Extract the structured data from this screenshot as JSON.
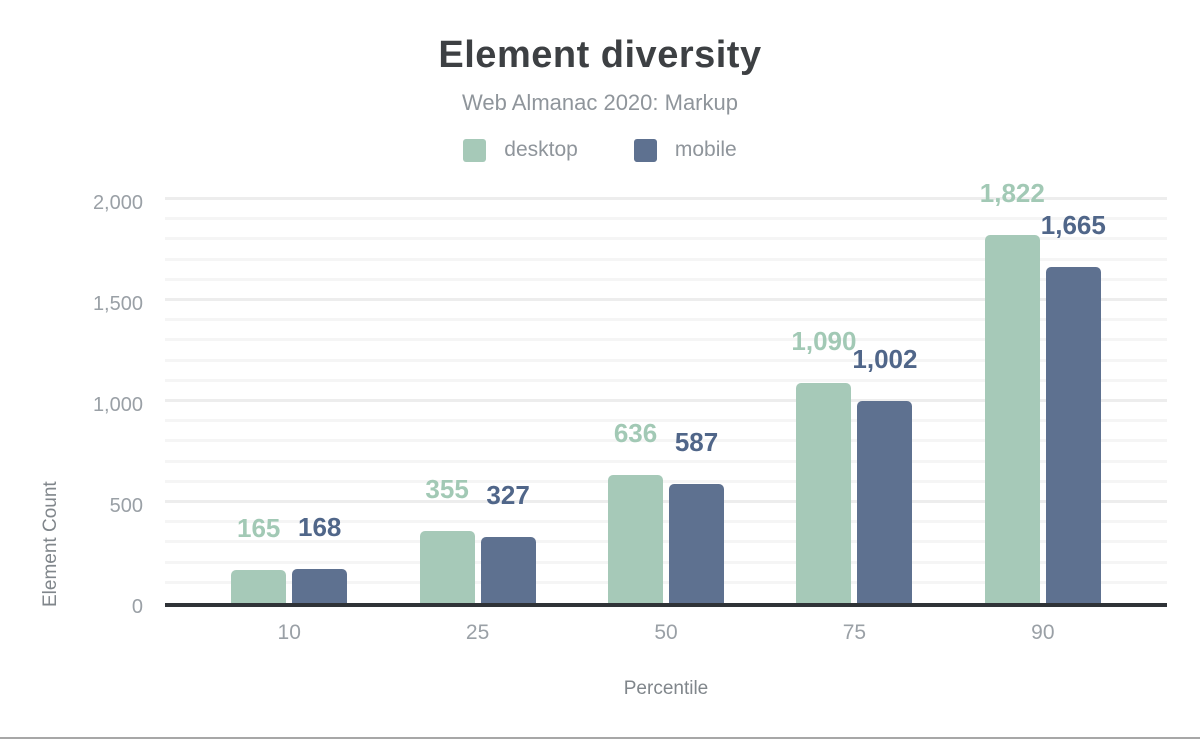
{
  "chart_data": {
    "type": "bar",
    "title": "Element diversity",
    "subtitle": "Web Almanac 2020: Markup",
    "xlabel": "Percentile",
    "ylabel": "Element Count",
    "categories": [
      "10",
      "25",
      "50",
      "75",
      "90"
    ],
    "series": [
      {
        "name": "desktop",
        "color": "#a6c9b8",
        "label_color": "#a2c9b5",
        "values": [
          165,
          355,
          636,
          1090,
          1822
        ]
      },
      {
        "name": "mobile",
        "color": "#5e7190",
        "label_color": "#506689",
        "values": [
          168,
          327,
          587,
          1002,
          1665
        ]
      }
    ],
    "y_ticks": [
      0,
      500,
      1000,
      1500,
      2000
    ],
    "ylim": [
      0,
      2090
    ],
    "gridline_step": 100,
    "grid": true,
    "legend_position": "top",
    "axis_line_color": "#2f3337",
    "tick_label_color": "#9aa0a6",
    "axis_title_color": "#80868b",
    "title_color": "#3d4043"
  }
}
